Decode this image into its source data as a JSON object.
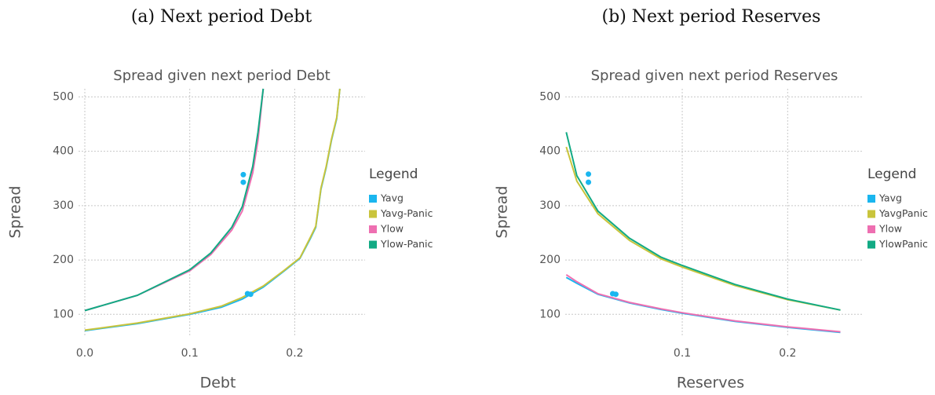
{
  "chart_data": [
    {
      "type": "line",
      "caption": "(a) Next period Debt",
      "title": "Spread given next period Debt",
      "xlabel": "Debt",
      "ylabel": "Spread",
      "legend_title": "Legend",
      "legend": "right",
      "grid": true,
      "xlim": [
        -0.006,
        0.267
      ],
      "ylim": [
        60,
        515
      ],
      "xticks": [
        {
          "value": 0,
          "label": "0.0"
        },
        0.1,
        0.2
      ],
      "yticks": [
        100,
        200,
        300,
        400,
        500
      ],
      "series": [
        {
          "name": "Yavg",
          "color": "#1ab6ef",
          "x": [
            0,
            0.05,
            0.1,
            0.13,
            0.15,
            0.17,
            0.19,
            0.205,
            0.215,
            0.22,
            0.225,
            0.23,
            0.235,
            0.24,
            0.243
          ],
          "values": [
            70,
            83,
            100,
            113,
            128,
            150,
            180,
            203,
            240,
            260,
            330,
            370,
            420,
            460,
            515
          ]
        },
        {
          "name": "Yavg-Panic",
          "color": "#c9c43c",
          "x": [
            0,
            0.05,
            0.1,
            0.13,
            0.15,
            0.17,
            0.19,
            0.205,
            0.215,
            0.22,
            0.225,
            0.23,
            0.235,
            0.24,
            0.243
          ],
          "values": [
            71,
            84,
            101,
            115,
            131,
            152,
            181,
            204,
            242,
            262,
            332,
            372,
            422,
            462,
            515
          ]
        },
        {
          "name": "Ylow",
          "color": "#ee6fb1",
          "x": [
            0,
            0.05,
            0.1,
            0.12,
            0.14,
            0.15,
            0.16,
            0.165,
            0.17
          ],
          "values": [
            107,
            135,
            180,
            210,
            255,
            290,
            360,
            420,
            515
          ]
        },
        {
          "name": "Ylow-Panic",
          "color": "#12aa84",
          "x": [
            0,
            0.05,
            0.1,
            0.12,
            0.14,
            0.15,
            0.16,
            0.165,
            0.17
          ],
          "values": [
            107,
            135,
            182,
            213,
            260,
            298,
            372,
            435,
            515
          ]
        }
      ],
      "markers": {
        "color": "#1ab6ef",
        "x": [
          0.151,
          0.151,
          0.155,
          0.158
        ],
        "values": [
          357,
          343,
          138,
          137
        ]
      }
    },
    {
      "type": "line",
      "caption": "(b) Next period Reserves",
      "title": "Spread given next period Reserves",
      "xlabel": "Reserves",
      "ylabel": "Spread",
      "legend_title": "Legend",
      "legend": "right",
      "grid": true,
      "xlim": [
        -0.011,
        0.272
      ],
      "ylim": [
        60,
        515
      ],
      "xticks": [
        0.1,
        0.2
      ],
      "yticks": [
        100,
        200,
        300,
        400,
        500
      ],
      "series": [
        {
          "name": "Yavg",
          "color": "#1ab6ef",
          "x": [
            -0.01,
            0.0,
            0.02,
            0.05,
            0.08,
            0.1,
            0.15,
            0.2,
            0.25
          ],
          "values": [
            168,
            157,
            137,
            121,
            109,
            102,
            87,
            76,
            67
          ]
        },
        {
          "name": "YavgPanic",
          "color": "#c9c43c",
          "x": [
            -0.01,
            0.0,
            0.02,
            0.05,
            0.08,
            0.1,
            0.15,
            0.2,
            0.25
          ],
          "values": [
            408,
            345,
            285,
            236,
            202,
            187,
            153,
            127,
            108
          ]
        },
        {
          "name": "Ylow",
          "color": "#ee6fb1",
          "x": [
            -0.01,
            0.0,
            0.02,
            0.05,
            0.08,
            0.1,
            0.15,
            0.2,
            0.25
          ],
          "values": [
            173,
            160,
            138,
            122,
            110,
            103,
            88,
            77,
            68
          ]
        },
        {
          "name": "YlowPanic",
          "color": "#12aa84",
          "x": [
            -0.01,
            0.0,
            0.02,
            0.05,
            0.08,
            0.1,
            0.15,
            0.2,
            0.25
          ],
          "values": [
            435,
            355,
            290,
            240,
            205,
            190,
            155,
            128,
            108
          ]
        }
      ],
      "markers": {
        "color": "#1ab6ef",
        "x": [
          0.011,
          0.011,
          0.034,
          0.037
        ],
        "values": [
          358,
          343,
          138,
          137
        ]
      }
    }
  ]
}
